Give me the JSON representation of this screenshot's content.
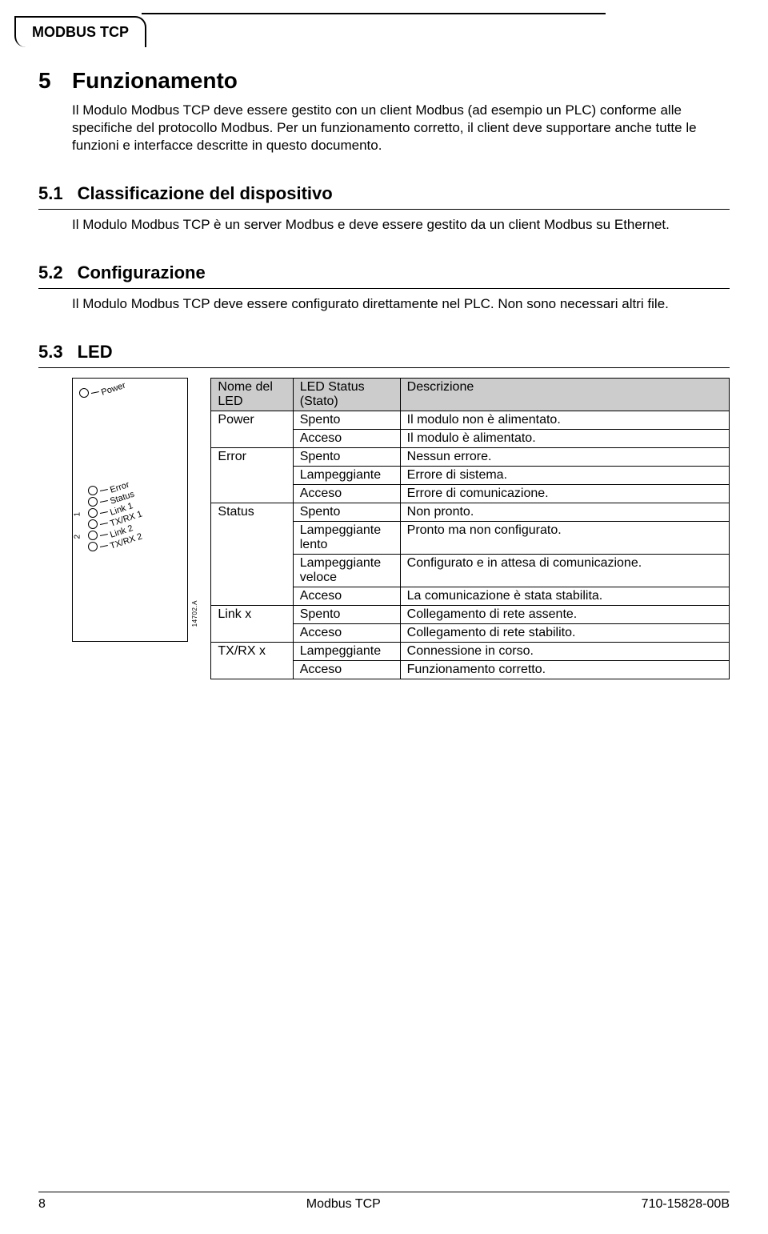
{
  "tab_title": "MODBUS TCP",
  "chapter": {
    "num": "5",
    "title": "Funzionamento",
    "body": "Il Modulo Modbus TCP deve essere gestito con un client Modbus (ad esempio un PLC) conforme alle specifiche del protocollo Modbus.   Per un funzionamento corretto, il client deve supportare anche tutte le funzioni e interfacce descritte in questo documento."
  },
  "sections": {
    "s1": {
      "num": "5.1",
      "title": "Classificazione del dispositivo",
      "body": "Il Modulo Modbus TCP è un server Modbus e deve essere gestito da un client Modbus su Ethernet."
    },
    "s2": {
      "num": "5.2",
      "title": "Configurazione",
      "body": "Il Modulo Modbus TCP deve essere configurato direttamente nel PLC. Non sono necessari altri file."
    },
    "s3": {
      "num": "5.3",
      "title": "LED"
    }
  },
  "led_panel": {
    "items": {
      "power": "Power",
      "error": "Error",
      "status": "Status",
      "link1": "Link 1",
      "txrx1": "TX/RX 1",
      "link2": "Link 2",
      "txrx2": "TX/RX 2"
    },
    "bracket1": "1",
    "bracket2": "2",
    "ref": "14702.A"
  },
  "led_table": {
    "header": {
      "col1": "Nome del LED",
      "col2": "LED Status (Stato)",
      "col3": "Descrizione"
    },
    "header_bg": "#cccccc",
    "rows": [
      {
        "name": "Power",
        "status": "Spento",
        "desc": "Il modulo non è alimentato.",
        "rowspan_name": 2
      },
      {
        "name": "",
        "status": "Acceso",
        "desc": "Il modulo è alimentato."
      },
      {
        "name": "Error",
        "status": "Spento",
        "desc": "Nessun errore.",
        "rowspan_name": 3
      },
      {
        "name": "",
        "status": "Lampeggiante",
        "desc": "Errore di sistema."
      },
      {
        "name": "",
        "status": "Acceso",
        "desc": "Errore di comunicazione."
      },
      {
        "name": "Status",
        "status": "Spento",
        "desc": "Non pronto.",
        "rowspan_name": 4
      },
      {
        "name": "",
        "status": "Lampeggiante lento",
        "desc": "Pronto ma non configurato."
      },
      {
        "name": "",
        "status": "Lampeggiante veloce",
        "desc": "Configurato e in attesa di comunicazione."
      },
      {
        "name": "",
        "status": "Acceso",
        "desc": "La comunicazione è stata stabilita."
      },
      {
        "name": "Link x",
        "status": "Spento",
        "desc": "Collegamento di rete assente.",
        "rowspan_name": 2
      },
      {
        "name": "",
        "status": "Acceso",
        "desc": "Collegamento di rete stabilito."
      },
      {
        "name": "TX/RX x",
        "status": "Lampeggiante",
        "desc": "Connessione in corso.",
        "rowspan_name": 2
      },
      {
        "name": "",
        "status": "Acceso",
        "desc": "Funzionamento corretto."
      }
    ]
  },
  "footer": {
    "page": "8",
    "center": "Modbus TCP",
    "doc": "710-15828-00B"
  }
}
